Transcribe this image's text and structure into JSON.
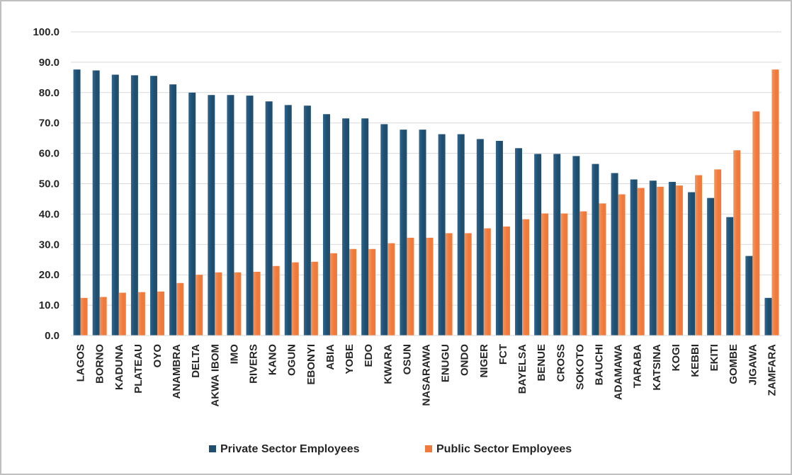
{
  "chart_data": {
    "type": "bar",
    "title": "",
    "xlabel": "",
    "ylabel": "",
    "ylim": [
      0,
      100
    ],
    "yticks": [
      "0.0",
      "10.0",
      "20.0",
      "30.0",
      "40.0",
      "50.0",
      "60.0",
      "70.0",
      "80.0",
      "90.0",
      "100.0"
    ],
    "grid": true,
    "legend_position": "bottom",
    "categories": [
      "LAGOS",
      "BORNO",
      "KADUNA",
      "PLATEAU",
      "OYO",
      "ANAMBRA",
      "DELTA",
      "AKWA IBOM",
      "IMO",
      "RIVERS",
      "KANO",
      "OGUN",
      "EBONYI",
      "ABIA",
      "YOBE",
      "EDO",
      "KWARA",
      "OSUN",
      "NASARAWA",
      "ENUGU",
      "ONDO",
      "NIGER",
      "FCT",
      "BAYELSA",
      "BENUE",
      "CROSS",
      "SOKOTO",
      "BAUCHI",
      "ADAMAWA",
      "TARABA",
      "KATSINA",
      "KOGI",
      "KEBBI",
      "EKITI",
      "GOMBE",
      "JIGAWA",
      "ZAMFARA"
    ],
    "series": [
      {
        "name": "Private Sector Employees",
        "color": "#1f4e6e",
        "values": [
          87.6,
          87.3,
          85.9,
          85.7,
          85.5,
          82.7,
          80.0,
          79.2,
          79.2,
          79.0,
          77.1,
          75.9,
          75.7,
          72.9,
          71.5,
          71.5,
          69.6,
          67.8,
          67.8,
          66.3,
          66.3,
          64.7,
          64.1,
          61.7,
          59.8,
          59.8,
          59.1,
          56.5,
          53.5,
          51.4,
          51.0,
          50.6,
          47.2,
          45.3,
          39.0,
          26.2,
          12.4
        ]
      },
      {
        "name": "Public Sector Employees",
        "color": "#f07a3c",
        "values": [
          12.4,
          12.7,
          14.1,
          14.3,
          14.5,
          17.3,
          20.0,
          20.8,
          20.8,
          21.0,
          22.9,
          24.1,
          24.3,
          27.1,
          28.5,
          28.5,
          30.4,
          32.2,
          32.2,
          33.7,
          33.7,
          35.3,
          35.9,
          38.3,
          40.2,
          40.2,
          40.9,
          43.5,
          46.5,
          48.6,
          49.0,
          49.4,
          52.8,
          54.7,
          61.0,
          73.8,
          87.6
        ]
      }
    ]
  }
}
